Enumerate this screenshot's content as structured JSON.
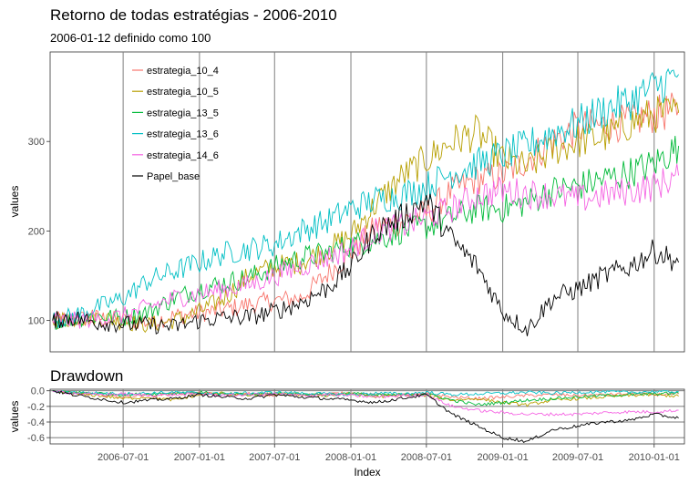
{
  "chart_data": [
    {
      "type": "line",
      "title": "Retorno de todas estratégias - 2006-2010",
      "subtitle": "2006-01-12 definido como 100",
      "ylabel": "values",
      "xlabel": "",
      "ylim": [
        65,
        400
      ],
      "yticks": [
        100,
        200,
        300
      ],
      "xlim": [
        "2006-01-06",
        "2010-03-15"
      ],
      "x": [
        "2006-01-12",
        "2006-03-01",
        "2006-05-01",
        "2006-07-01",
        "2006-09-01",
        "2006-11-01",
        "2007-01-01",
        "2007-03-01",
        "2007-05-01",
        "2007-07-01",
        "2007-09-01",
        "2007-11-01",
        "2008-01-01",
        "2008-03-01",
        "2008-05-01",
        "2008-07-01",
        "2008-09-01",
        "2008-11-01",
        "2009-01-01",
        "2009-03-01",
        "2009-05-01",
        "2009-07-01",
        "2009-09-01",
        "2009-11-01",
        "2010-01-01",
        "2010-03-01"
      ],
      "vlines": [
        "2006-07-01",
        "2007-01-01",
        "2007-07-01",
        "2008-01-01",
        "2008-07-01",
        "2009-01-01",
        "2009-07-01",
        "2010-01-01"
      ],
      "legend_position": "top-left",
      "grid": false,
      "series": [
        {
          "name": "estrategia_10_4",
          "color": "#F8766D",
          "values": [
            100,
            101,
            103,
            100,
            98,
            105,
            108,
            112,
            118,
            122,
            125,
            150,
            175,
            205,
            210,
            220,
            245,
            258,
            262,
            280,
            300,
            315,
            318,
            322,
            330,
            335
          ]
        },
        {
          "name": "estrategia_10_5",
          "color": "#B79F00",
          "values": [
            100,
            102,
            104,
            99,
            95,
            100,
            110,
            125,
            150,
            160,
            165,
            178,
            195,
            230,
            260,
            280,
            300,
            310,
            280,
            270,
            290,
            300,
            305,
            320,
            330,
            332
          ]
        },
        {
          "name": "estrategia_13_5",
          "color": "#00BA38",
          "values": [
            100,
            102,
            105,
            103,
            110,
            125,
            135,
            142,
            148,
            160,
            170,
            175,
            185,
            190,
            200,
            205,
            215,
            225,
            225,
            232,
            245,
            250,
            258,
            265,
            275,
            295
          ]
        },
        {
          "name": "estrategia_13_6",
          "color": "#00BFC4",
          "values": [
            100,
            105,
            115,
            125,
            145,
            155,
            165,
            175,
            180,
            185,
            200,
            210,
            225,
            235,
            240,
            250,
            265,
            275,
            285,
            295,
            310,
            320,
            335,
            345,
            360,
            375
          ]
        },
        {
          "name": "estrategia_14_6",
          "color": "#F564E3",
          "values": [
            100,
            100,
            102,
            105,
            115,
            125,
            130,
            135,
            140,
            150,
            160,
            170,
            180,
            200,
            205,
            215,
            225,
            240,
            245,
            242,
            240,
            235,
            240,
            245,
            250,
            262
          ]
        },
        {
          "name": "Papel_base",
          "color": "#000000",
          "values": [
            100,
            103,
            98,
            96,
            95,
            93,
            100,
            103,
            104,
            110,
            120,
            135,
            160,
            200,
            215,
            235,
            190,
            160,
            110,
            90,
            125,
            135,
            150,
            160,
            178,
            165
          ]
        }
      ]
    },
    {
      "type": "line",
      "title": "Drawdown",
      "ylabel": "values",
      "xlabel": "Index",
      "ylim": [
        -0.68,
        0.02
      ],
      "yticks": [
        0.0,
        -0.2,
        -0.4,
        -0.6
      ],
      "ytick_labels": [
        "0.0",
        "-0.2",
        "-0.4",
        "-0.6"
      ],
      "xlim": [
        "2006-01-06",
        "2010-03-15"
      ],
      "xticks": [
        "2006-07-01",
        "2007-01-01",
        "2007-07-01",
        "2008-01-01",
        "2008-07-01",
        "2009-01-01",
        "2009-07-01",
        "2010-01-01"
      ],
      "x": [
        "2006-01-12",
        "2006-03-01",
        "2006-05-01",
        "2006-07-01",
        "2006-09-01",
        "2006-11-01",
        "2007-01-01",
        "2007-03-01",
        "2007-05-01",
        "2007-07-01",
        "2007-09-01",
        "2007-11-01",
        "2008-01-01",
        "2008-03-01",
        "2008-05-01",
        "2008-07-01",
        "2008-09-01",
        "2008-11-01",
        "2009-01-01",
        "2009-03-01",
        "2009-05-01",
        "2009-07-01",
        "2009-09-01",
        "2009-11-01",
        "2010-01-01",
        "2010-03-01"
      ],
      "vlines": [
        "2006-07-01",
        "2007-01-01",
        "2007-07-01",
        "2008-01-01",
        "2008-07-01",
        "2009-01-01",
        "2009-07-01",
        "2010-01-01"
      ],
      "grid": true,
      "series": [
        {
          "name": "estrategia_10_4",
          "color": "#F8766D",
          "values": [
            0,
            -0.03,
            -0.05,
            -0.08,
            -0.05,
            -0.04,
            -0.03,
            -0.05,
            -0.04,
            -0.06,
            -0.05,
            -0.04,
            -0.03,
            -0.05,
            -0.06,
            -0.04,
            -0.08,
            -0.1,
            -0.08,
            -0.06,
            -0.05,
            -0.06,
            -0.05,
            -0.04,
            -0.05,
            -0.04
          ]
        },
        {
          "name": "estrategia_10_5",
          "color": "#B79F00",
          "values": [
            0,
            -0.04,
            -0.06,
            -0.1,
            -0.08,
            -0.12,
            -0.05,
            -0.03,
            -0.06,
            -0.04,
            -0.05,
            -0.06,
            -0.04,
            -0.08,
            -0.05,
            -0.06,
            -0.12,
            -0.1,
            -0.15,
            -0.18,
            -0.12,
            -0.1,
            -0.08,
            -0.06,
            -0.05,
            -0.07
          ]
        },
        {
          "name": "estrategia_13_5",
          "color": "#00BA38",
          "values": [
            0,
            -0.02,
            -0.03,
            -0.05,
            -0.04,
            -0.03,
            -0.02,
            -0.04,
            -0.05,
            -0.03,
            -0.04,
            -0.05,
            -0.03,
            -0.06,
            -0.05,
            -0.04,
            -0.12,
            -0.18,
            -0.15,
            -0.12,
            -0.1,
            -0.08,
            -0.06,
            -0.05,
            -0.04,
            -0.03
          ]
        },
        {
          "name": "estrategia_13_6",
          "color": "#00BFC4",
          "values": [
            0,
            -0.02,
            -0.03,
            -0.04,
            -0.03,
            -0.02,
            -0.03,
            -0.04,
            -0.03,
            -0.02,
            -0.03,
            -0.04,
            -0.05,
            -0.03,
            -0.04,
            -0.02,
            -0.05,
            -0.04,
            -0.03,
            -0.02,
            -0.03,
            -0.02,
            -0.01,
            -0.02,
            -0.01,
            -0.01
          ]
        },
        {
          "name": "estrategia_14_6",
          "color": "#F564E3",
          "values": [
            0,
            -0.03,
            -0.05,
            -0.04,
            -0.06,
            -0.05,
            -0.04,
            -0.06,
            -0.05,
            -0.04,
            -0.06,
            -0.05,
            -0.06,
            -0.08,
            -0.06,
            -0.05,
            -0.2,
            -0.25,
            -0.28,
            -0.3,
            -0.3,
            -0.3,
            -0.28,
            -0.27,
            -0.27,
            -0.25
          ]
        },
        {
          "name": "Papel_base",
          "color": "#000000",
          "values": [
            0,
            -0.05,
            -0.1,
            -0.15,
            -0.12,
            -0.1,
            -0.05,
            -0.08,
            -0.1,
            -0.05,
            -0.08,
            -0.1,
            -0.12,
            -0.15,
            -0.1,
            -0.05,
            -0.3,
            -0.45,
            -0.6,
            -0.65,
            -0.5,
            -0.45,
            -0.4,
            -0.38,
            -0.3,
            -0.35
          ]
        }
      ]
    }
  ]
}
